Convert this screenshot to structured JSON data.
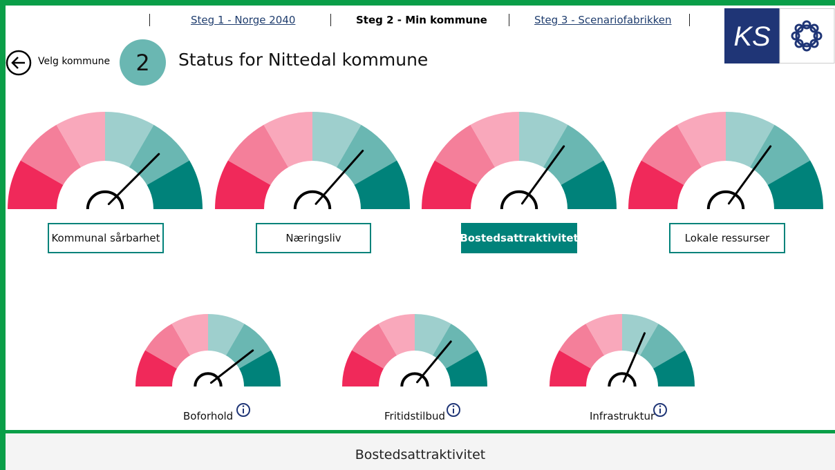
{
  "nav": {
    "step1": "Steg 1 - Norge 2040",
    "step2": "Steg 2 - Min kommune",
    "step3": "Steg 3 - Scenariofabrikken"
  },
  "logo": "KS",
  "back": "Velg kommune",
  "step_number": "2",
  "title": "Status for Nittedal kommune",
  "gauges": [
    {
      "label": "Kommunal sårbarhet",
      "value": 0.75
    },
    {
      "label": "Næringsliv",
      "value": 0.73
    },
    {
      "label": "Bostedsattraktivitet",
      "value": 0.7
    },
    {
      "label": "Lokale ressurser",
      "value": 0.7
    }
  ],
  "subgauges": [
    {
      "label": "Boforhold",
      "value": 0.79
    },
    {
      "label": "Fritidstilbud",
      "value": 0.72
    },
    {
      "label": "Infrastruktur",
      "value": 0.63
    }
  ],
  "panel_title": "Bostedsattraktivitet"
}
